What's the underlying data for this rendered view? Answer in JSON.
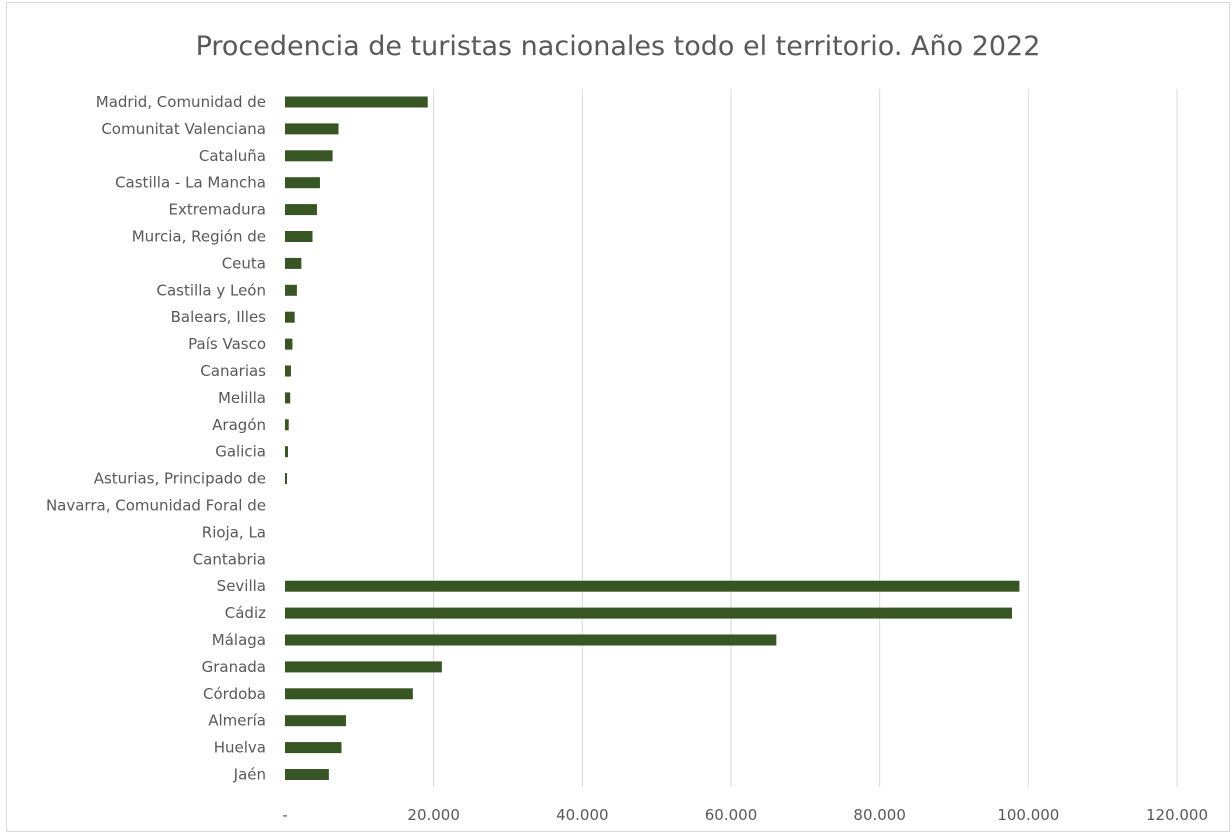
{
  "chart_data": {
    "type": "bar",
    "orientation": "horizontal",
    "title": "Procedencia de turistas nacionales todo el territorio. Año 2022",
    "xlabel": "",
    "ylabel": "",
    "xlim": [
      0,
      120000
    ],
    "x_ticks": [
      0,
      20000,
      40000,
      60000,
      80000,
      100000,
      120000
    ],
    "x_tick_labels": [
      "-",
      "20.000",
      "40.000",
      "60.000",
      "80.000",
      "100.000",
      "120.000"
    ],
    "grid": "vertical",
    "legend": "none",
    "bar_color": "#375623",
    "categories": [
      "Madrid, Comunidad de",
      "Comunitat Valenciana",
      "Cataluña",
      "Castilla - La Mancha",
      "Extremadura",
      "Murcia, Región de",
      "Ceuta",
      "Castilla y León",
      "Balears, Illes",
      "País Vasco",
      "Canarias",
      "Melilla",
      "Aragón",
      "Galicia",
      "Asturias, Principado de",
      "Navarra, Comunidad Foral de",
      "Rioja, La",
      "Cantabria",
      "Sevilla",
      "Cádiz",
      "Málaga",
      "Granada",
      "Córdoba",
      "Almería",
      "Huelva",
      "Jaén"
    ],
    "values": [
      19200,
      7200,
      6400,
      4700,
      4300,
      3700,
      2200,
      1600,
      1300,
      1000,
      800,
      700,
      500,
      400,
      200,
      0,
      0,
      0,
      98800,
      97800,
      66100,
      21100,
      17200,
      8200,
      7600,
      5900
    ]
  }
}
